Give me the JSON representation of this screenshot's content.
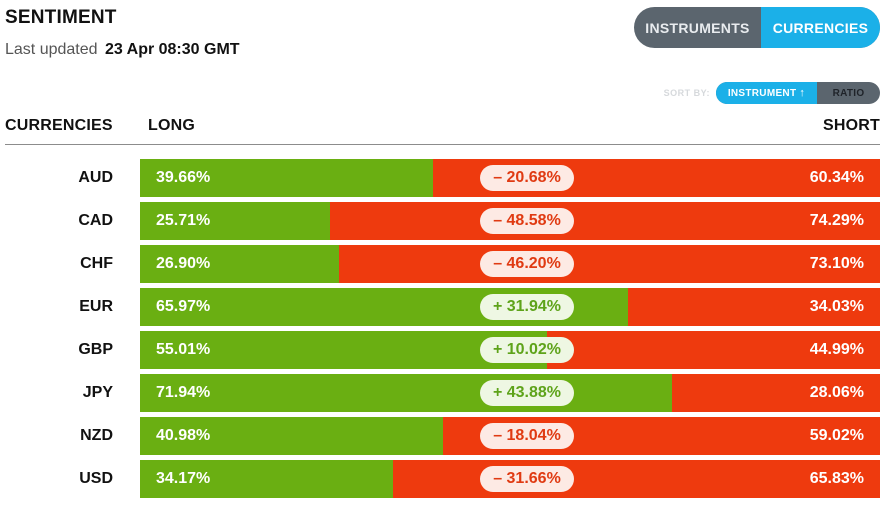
{
  "header": {
    "title": "SENTIMENT",
    "updated_label": "Last updated",
    "updated_value": "23 Apr 08:30 GMT"
  },
  "toggle": {
    "instruments_label": "INSTRUMENTS",
    "currencies_label": "CURRENCIES",
    "active": "CURRENCIES"
  },
  "sort": {
    "label": "SORT BY:",
    "instrument_label": "INSTRUMENT",
    "instrument_arrow": "↑",
    "ratio_label": "RATIO",
    "active": "INSTRUMENT"
  },
  "columns": {
    "currencies": "CURRENCIES",
    "long": "LONG",
    "short": "SHORT"
  },
  "colors": {
    "long": "#6aaf12",
    "short": "#ee3a0e",
    "accent": "#1bb0e8",
    "toggle_bg": "#5b656e"
  },
  "rows": [
    {
      "currency": "AUD",
      "long": "39.66%",
      "short": "60.34%",
      "ratio": "– 20.68%",
      "long_value": 39.66,
      "sign": "neg"
    },
    {
      "currency": "CAD",
      "long": "25.71%",
      "short": "74.29%",
      "ratio": "– 48.58%",
      "long_value": 25.71,
      "sign": "neg"
    },
    {
      "currency": "CHF",
      "long": "26.90%",
      "short": "73.10%",
      "ratio": "– 46.20%",
      "long_value": 26.9,
      "sign": "neg"
    },
    {
      "currency": "EUR",
      "long": "65.97%",
      "short": "34.03%",
      "ratio": "+ 31.94%",
      "long_value": 65.97,
      "sign": "pos"
    },
    {
      "currency": "GBP",
      "long": "55.01%",
      "short": "44.99%",
      "ratio": "+ 10.02%",
      "long_value": 55.01,
      "sign": "pos"
    },
    {
      "currency": "JPY",
      "long": "71.94%",
      "short": "28.06%",
      "ratio": "+ 43.88%",
      "long_value": 71.94,
      "sign": "pos"
    },
    {
      "currency": "NZD",
      "long": "40.98%",
      "short": "59.02%",
      "ratio": "– 18.04%",
      "long_value": 40.98,
      "sign": "neg"
    },
    {
      "currency": "USD",
      "long": "34.17%",
      "short": "65.83%",
      "ratio": "– 31.66%",
      "long_value": 34.17,
      "sign": "neg"
    }
  ]
}
